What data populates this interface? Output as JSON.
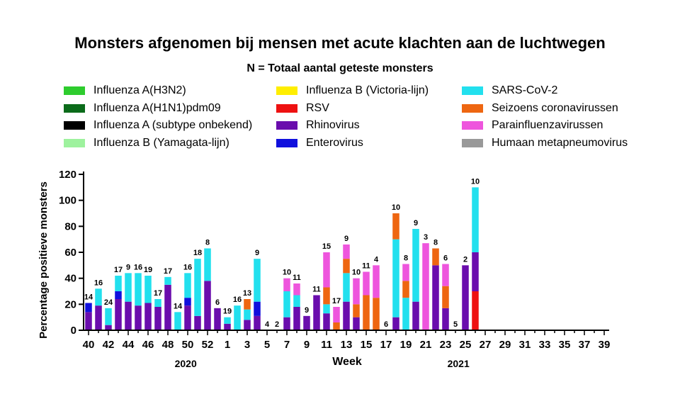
{
  "chart_data": {
    "type": "bar",
    "stacked": true,
    "title": "Monsters afgenomen bij mensen met acute klachten aan de luchtwegen",
    "subtitle": "N = Totaal aantal geteste monsters",
    "xlabel": "Week",
    "ylabel": "Percentage positieve monsters",
    "ylim": [
      0,
      120
    ],
    "yticks": [
      0,
      20,
      40,
      60,
      80,
      100,
      120
    ],
    "week_order": [
      40,
      41,
      42,
      43,
      44,
      45,
      46,
      47,
      48,
      49,
      50,
      51,
      52,
      53,
      1,
      2,
      3,
      4,
      5,
      6,
      7,
      8,
      9,
      10,
      11,
      12,
      13,
      14,
      15,
      16,
      17,
      18,
      19,
      20,
      21,
      22,
      23,
      24,
      25,
      26,
      27,
      28,
      29,
      30,
      31,
      32,
      33,
      34,
      35,
      36,
      37,
      38,
      39
    ],
    "xtick_labels": [
      "40",
      "42",
      "44",
      "46",
      "48",
      "50",
      "52",
      "1",
      "3",
      "5",
      "7",
      "9",
      "11",
      "13",
      "15",
      "17",
      "19",
      "21",
      "23",
      "25",
      "27",
      "29",
      "31",
      "33",
      "35",
      "37",
      "39"
    ],
    "year_labels": [
      {
        "label": "2020",
        "after_week": 52
      },
      {
        "label": "2021",
        "after_week": 26
      }
    ],
    "series": [
      {
        "name": "Influenza A(H3N2)",
        "color": "#2ecc2e"
      },
      {
        "name": "Influenza A(H1N1)pdm09",
        "color": "#0b6b1a"
      },
      {
        "name": "Influenza A (subtype onbekend)",
        "color": "#000000"
      },
      {
        "name": "Influenza B (Yamagata-lijn)",
        "color": "#9ef29e"
      },
      {
        "name": "Influenza B (Victoria-lijn)",
        "color": "#ffee00"
      },
      {
        "name": "RSV",
        "color": "#ee1111"
      },
      {
        "name": "Rhinovirus",
        "color": "#6a0dad"
      },
      {
        "name": "Enterovirus",
        "color": "#1010dd"
      },
      {
        "name": "SARS-CoV-2",
        "color": "#22e0ee"
      },
      {
        "name": "Seizoens coronavirussen",
        "color": "#ee6611"
      },
      {
        "name": "Parainfluenzavirussen",
        "color": "#ee55dd"
      },
      {
        "name": "Humaan metapneumovirus",
        "color": "#999999"
      }
    ],
    "bars": [
      {
        "week": 40,
        "n": "14",
        "segments": [
          [
            "Rhinovirus",
            14
          ],
          [
            "Enterovirus",
            7
          ]
        ]
      },
      {
        "week": 41,
        "n": "16",
        "segments": [
          [
            "Rhinovirus",
            19
          ],
          [
            "SARS-CoV-2",
            13
          ]
        ]
      },
      {
        "week": 42,
        "n": "24",
        "segments": [
          [
            "Rhinovirus",
            4
          ],
          [
            "SARS-CoV-2",
            13
          ]
        ]
      },
      {
        "week": 43,
        "n": "17",
        "segments": [
          [
            "Rhinovirus",
            24
          ],
          [
            "Enterovirus",
            6
          ],
          [
            "SARS-CoV-2",
            12
          ]
        ]
      },
      {
        "week": 44,
        "n": "9",
        "segments": [
          [
            "Rhinovirus",
            22
          ],
          [
            "SARS-CoV-2",
            22
          ]
        ]
      },
      {
        "week": 45,
        "n": "16",
        "segments": [
          [
            "Rhinovirus",
            19
          ],
          [
            "SARS-CoV-2",
            25
          ]
        ]
      },
      {
        "week": 46,
        "n": "19",
        "segments": [
          [
            "Rhinovirus",
            21
          ],
          [
            "SARS-CoV-2",
            21
          ]
        ]
      },
      {
        "week": 47,
        "n": "17",
        "segments": [
          [
            "Rhinovirus",
            18
          ],
          [
            "SARS-CoV-2",
            6
          ]
        ]
      },
      {
        "week": 48,
        "n": "17",
        "segments": [
          [
            "Rhinovirus",
            35
          ],
          [
            "SARS-CoV-2",
            6
          ]
        ]
      },
      {
        "week": 49,
        "n": "14",
        "segments": [
          [
            "SARS-CoV-2",
            14
          ]
        ]
      },
      {
        "week": 50,
        "n": "16",
        "segments": [
          [
            "Rhinovirus",
            19
          ],
          [
            "Enterovirus",
            6
          ],
          [
            "SARS-CoV-2",
            19
          ]
        ]
      },
      {
        "week": 51,
        "n": "18",
        "segments": [
          [
            "Rhinovirus",
            11
          ],
          [
            "SARS-CoV-2",
            44
          ]
        ]
      },
      {
        "week": 52,
        "n": "8",
        "segments": [
          [
            "Rhinovirus",
            38
          ],
          [
            "SARS-CoV-2",
            25
          ]
        ]
      },
      {
        "week": 53,
        "n": "6",
        "segments": [
          [
            "Rhinovirus",
            17
          ]
        ]
      },
      {
        "week": 1,
        "n": "19",
        "segments": [
          [
            "Rhinovirus",
            5
          ],
          [
            "Enterovirus",
            0
          ],
          [
            "SARS-CoV-2",
            5
          ]
        ]
      },
      {
        "week": 2,
        "n": "16",
        "segments": [
          [
            "SARS-CoV-2",
            19
          ]
        ]
      },
      {
        "week": 3,
        "n": "13",
        "segments": [
          [
            "Rhinovirus",
            8
          ],
          [
            "SARS-CoV-2",
            8
          ],
          [
            "Seizoens coronavirussen",
            8
          ]
        ]
      },
      {
        "week": 4,
        "n": "9",
        "segments": [
          [
            "Rhinovirus",
            11
          ],
          [
            "Enterovirus",
            11
          ],
          [
            "SARS-CoV-2",
            33
          ]
        ]
      },
      {
        "week": 5,
        "n": "4",
        "segments": []
      },
      {
        "week": 6,
        "n": "2",
        "segments": []
      },
      {
        "week": 7,
        "n": "10",
        "segments": [
          [
            "Rhinovirus",
            10
          ],
          [
            "SARS-CoV-2",
            20
          ],
          [
            "Parainfluenzavirussen",
            10
          ]
        ]
      },
      {
        "week": 8,
        "n": "11",
        "segments": [
          [
            "Rhinovirus",
            18
          ],
          [
            "SARS-CoV-2",
            9
          ],
          [
            "Parainfluenzavirussen",
            9
          ]
        ]
      },
      {
        "week": 9,
        "n": "9",
        "segments": [
          [
            "Rhinovirus",
            11
          ]
        ]
      },
      {
        "week": 10,
        "n": "11",
        "segments": [
          [
            "Rhinovirus",
            27
          ]
        ]
      },
      {
        "week": 11,
        "n": "15",
        "segments": [
          [
            "Rhinovirus",
            13
          ],
          [
            "SARS-CoV-2",
            7
          ],
          [
            "Seizoens coronavirussen",
            13
          ],
          [
            "Parainfluenzavirussen",
            27
          ]
        ]
      },
      {
        "week": 12,
        "n": "17",
        "segments": [
          [
            "Seizoens coronavirussen",
            6
          ],
          [
            "Parainfluenzavirussen",
            12
          ]
        ]
      },
      {
        "week": 13,
        "n": "9",
        "segments": [
          [
            "Rhinovirus",
            22
          ],
          [
            "SARS-CoV-2",
            22
          ],
          [
            "Seizoens coronavirussen",
            11
          ],
          [
            "Parainfluenzavirussen",
            11
          ]
        ]
      },
      {
        "week": 14,
        "n": "10",
        "segments": [
          [
            "Rhinovirus",
            10
          ],
          [
            "Seizoens coronavirussen",
            10
          ],
          [
            "Parainfluenzavirussen",
            20
          ]
        ]
      },
      {
        "week": 15,
        "n": "11",
        "segments": [
          [
            "Seizoens coronavirussen",
            27
          ],
          [
            "Parainfluenzavirussen",
            18
          ]
        ]
      },
      {
        "week": 16,
        "n": "4",
        "segments": [
          [
            "Seizoens coronavirussen",
            25
          ],
          [
            "Parainfluenzavirussen",
            25
          ]
        ]
      },
      {
        "week": 17,
        "n": "6",
        "segments": []
      },
      {
        "week": 18,
        "n": "10",
        "segments": [
          [
            "Rhinovirus",
            10
          ],
          [
            "SARS-CoV-2",
            60
          ],
          [
            "Seizoens coronavirussen",
            20
          ]
        ]
      },
      {
        "week": 19,
        "n": "8",
        "segments": [
          [
            "SARS-CoV-2",
            25
          ],
          [
            "Seizoens coronavirussen",
            13
          ],
          [
            "Parainfluenzavirussen",
            13
          ]
        ]
      },
      {
        "week": 20,
        "n": "9",
        "segments": [
          [
            "Rhinovirus",
            22
          ],
          [
            "SARS-CoV-2",
            56
          ]
        ]
      },
      {
        "week": 21,
        "n": "3",
        "segments": [
          [
            "Rhinovirus",
            0
          ],
          [
            "Parainfluenzavirussen",
            67
          ]
        ]
      },
      {
        "week": 22,
        "n": "8",
        "segments": [
          [
            "Rhinovirus",
            50
          ],
          [
            "Seizoens coronavirussen",
            13
          ]
        ]
      },
      {
        "week": 23,
        "n": "6",
        "segments": [
          [
            "Rhinovirus",
            17
          ],
          [
            "Seizoens coronavirussen",
            17
          ],
          [
            "Parainfluenzavirussen",
            17
          ]
        ]
      },
      {
        "week": 24,
        "n": "5",
        "segments": []
      },
      {
        "week": 25,
        "n": "2",
        "segments": [
          [
            "Rhinovirus",
            50
          ]
        ]
      },
      {
        "week": 26,
        "n": "10",
        "segments": [
          [
            "RSV",
            30
          ],
          [
            "Rhinovirus",
            30
          ],
          [
            "SARS-CoV-2",
            50
          ]
        ]
      }
    ]
  }
}
